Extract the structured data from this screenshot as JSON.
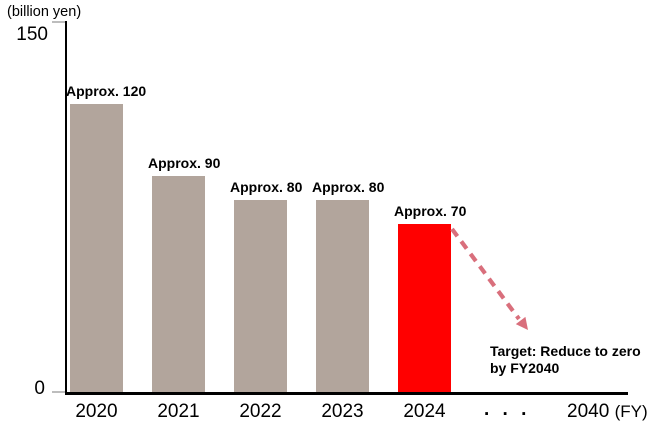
{
  "chart_data": {
    "type": "bar",
    "title": "",
    "unit_label": "(billion yen)",
    "ylim": [
      0,
      150
    ],
    "y_ticks": [
      "0",
      "150"
    ],
    "categories": [
      "2020",
      "2021",
      "2022",
      "2023",
      "2024"
    ],
    "values": [
      120,
      90,
      80,
      80,
      70
    ],
    "bar_labels": [
      "Approx. 120",
      "Approx. 90",
      "Approx. 80",
      "Approx. 80",
      "Approx. 70"
    ],
    "bar_colors": [
      "#b2a59c",
      "#b2a59c",
      "#b2a59c",
      "#b2a59c",
      "#ff0000"
    ],
    "x_ellipsis": ". . .",
    "x_final_year": "2040",
    "x_axis_suffix": "(FY)",
    "annotation": {
      "line1": "Target: Reduce to zero",
      "line2": "by FY2040"
    },
    "arrow_color": "#d96f7c",
    "axis_color": "#000000",
    "tick_color": "#bdbdbd",
    "grid": false,
    "legend": "none"
  }
}
